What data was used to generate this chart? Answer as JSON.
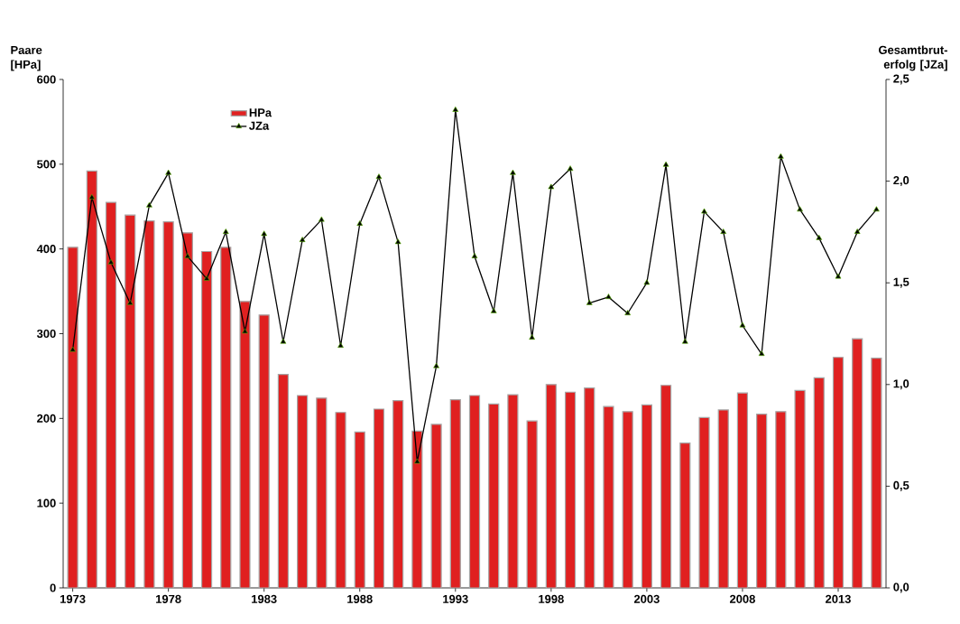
{
  "chart_data": {
    "type": "bar",
    "ylabel": "Paare [HPa]",
    "y2label": "Gesamtbrut-erfolg [JZa]",
    "categories": [
      "1973",
      null,
      null,
      null,
      null,
      "1978",
      null,
      null,
      null,
      null,
      "1983",
      null,
      null,
      null,
      null,
      "1988",
      null,
      null,
      null,
      null,
      "1993",
      null,
      null,
      null,
      null,
      "1998",
      null,
      null,
      null,
      null,
      "2003",
      null,
      null,
      null,
      null,
      "2008",
      null,
      null,
      null,
      null,
      "2013",
      null,
      null
    ],
    "series": [
      {
        "name": "HPa",
        "color": "#e02020",
        "values": [
          402,
          492,
          455,
          440,
          433,
          432,
          419,
          397,
          402,
          338,
          322,
          252,
          227,
          224,
          207,
          184,
          211,
          221,
          185,
          193,
          222,
          227,
          217,
          228,
          197,
          240,
          231,
          236,
          214,
          208,
          216,
          239,
          171,
          201,
          210,
          230,
          205,
          208,
          233,
          248,
          272,
          294,
          271
        ]
      },
      {
        "name": "JZa",
        "type": "line",
        "axis": "y2",
        "color": "#000000",
        "marker": "triangle",
        "values": [
          1.17,
          1.92,
          1.6,
          1.4,
          1.88,
          2.04,
          1.63,
          1.52,
          1.75,
          1.26,
          1.74,
          1.21,
          1.71,
          1.81,
          1.19,
          1.79,
          2.02,
          1.7,
          0.62,
          1.09,
          2.35,
          1.63,
          1.36,
          2.04,
          1.23,
          1.97,
          2.06,
          1.4,
          1.43,
          1.35,
          1.5,
          2.08,
          1.21,
          1.85,
          1.75,
          1.29,
          1.15,
          2.12,
          1.86,
          1.72,
          1.53,
          1.75,
          1.86
        ]
      }
    ],
    "ylim": [
      0,
      600
    ],
    "yticks": [
      0,
      100,
      200,
      300,
      400,
      500,
      600
    ],
    "y2lim": [
      0,
      2.5
    ],
    "y2ticks": [
      {
        "value": 0,
        "label": "0,0"
      },
      {
        "value": 0.5,
        "label": "0,5"
      },
      {
        "value": 1,
        "label": "1,0"
      },
      {
        "value": 1.5,
        "label": "1,5"
      },
      {
        "value": 2,
        "label": "2,0"
      },
      {
        "value": 2.5,
        "label": "2,5"
      }
    ],
    "legend": "top left"
  }
}
